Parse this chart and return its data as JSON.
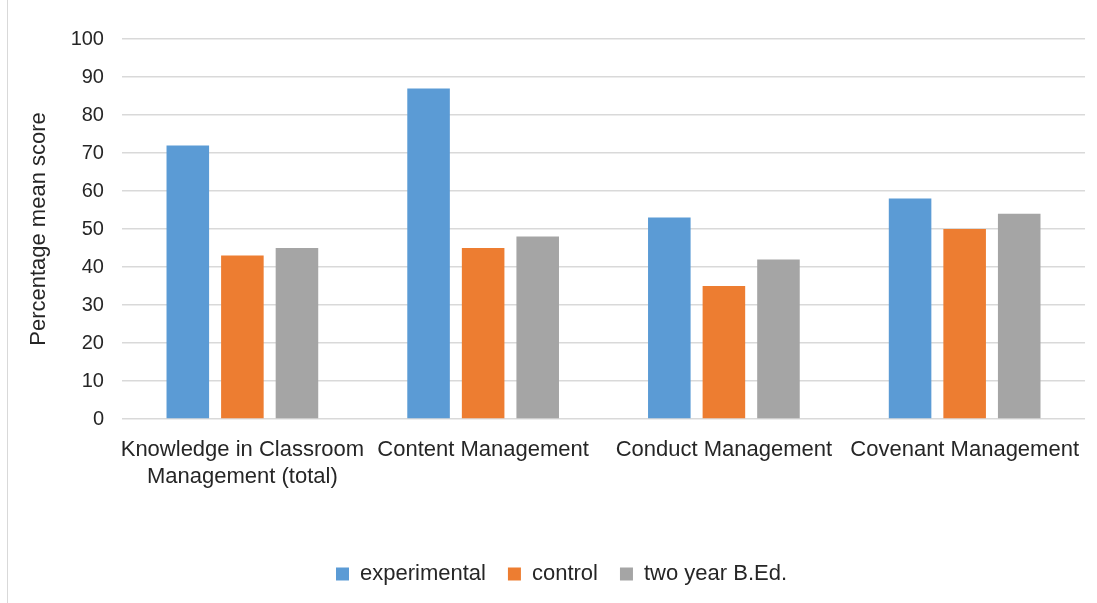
{
  "chart_data": {
    "type": "bar",
    "ylabel": "Percentage mean score",
    "categories": [
      "Knowledge in Classroom Management (total)",
      "Content Management",
      "Conduct Management",
      "Covenant Management"
    ],
    "series": [
      {
        "name": "experimental",
        "color": "#5b9bd5",
        "values": [
          72,
          87,
          53,
          58
        ]
      },
      {
        "name": "control",
        "color": "#ed7d31",
        "values": [
          43,
          45,
          35,
          50
        ]
      },
      {
        "name": "two year B.Ed.",
        "color": "#a5a5a5",
        "values": [
          45,
          48,
          42,
          54
        ]
      }
    ],
    "ylim": [
      0,
      100
    ],
    "yticks": [
      0,
      10,
      20,
      30,
      40,
      50,
      60,
      70,
      80,
      90,
      100
    ],
    "grid": "y",
    "legend": "bottom"
  }
}
